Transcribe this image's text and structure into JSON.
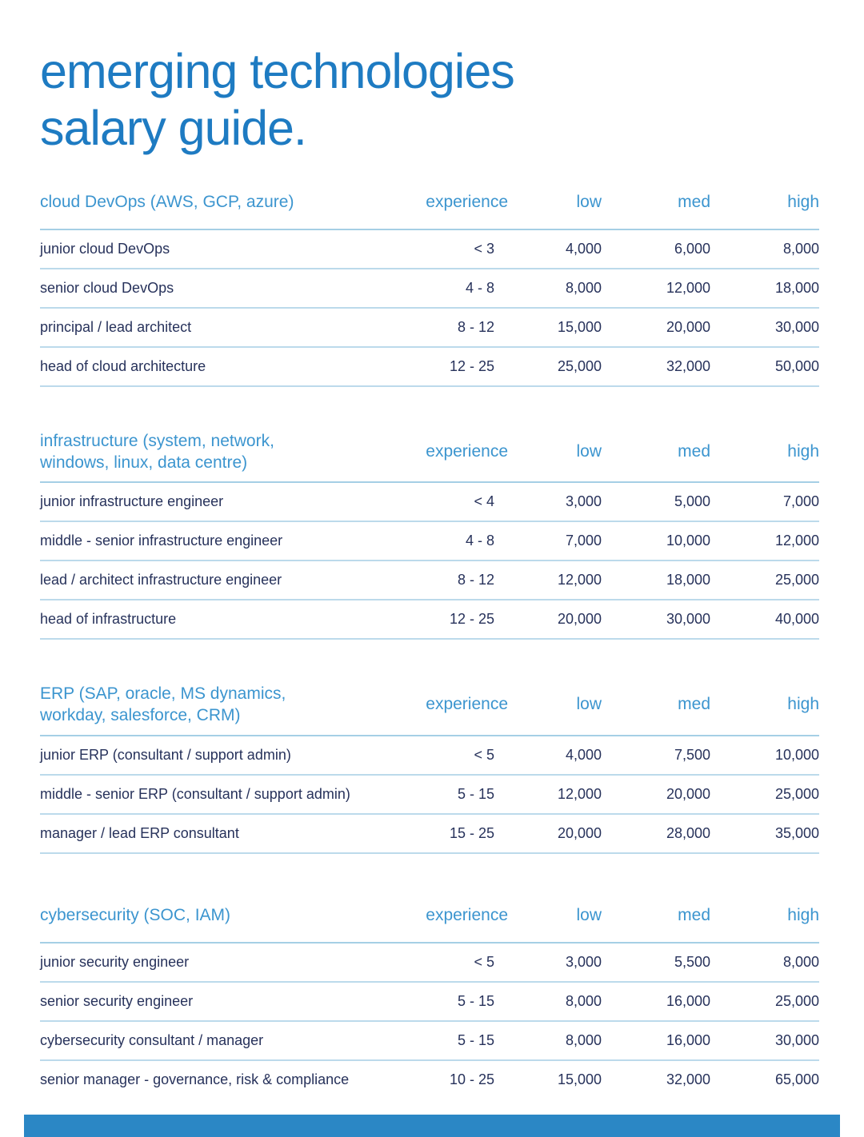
{
  "title": {
    "line1": "emerging technologies",
    "line2": "salary guide."
  },
  "columns": {
    "experience": "experience",
    "low": "low",
    "med": "med",
    "high": "high"
  },
  "colors": {
    "title_blue": "#1e7bc2",
    "section_header_blue": "#3c95cf",
    "row_text_navy": "#27325b",
    "divider_blue": "#bcdaeb",
    "footer_bar_blue": "#2b87c5"
  },
  "sections": [
    {
      "title": "cloud DevOps (AWS, GCP, azure)",
      "rows": [
        {
          "role": "junior cloud DevOps",
          "experience": "< 3",
          "low": "4,000",
          "med": "6,000",
          "high": "8,000"
        },
        {
          "role": "senior cloud DevOps",
          "experience": "4 - 8",
          "low": "8,000",
          "med": "12,000",
          "high": "18,000"
        },
        {
          "role": "principal / lead architect",
          "experience": "8 - 12",
          "low": "15,000",
          "med": "20,000",
          "high": "30,000"
        },
        {
          "role": "head of cloud architecture",
          "experience": "12 - 25",
          "low": "25,000",
          "med": "32,000",
          "high": "50,000"
        }
      ]
    },
    {
      "title": "infrastructure (system, network,\nwindows, linux, data centre)",
      "rows": [
        {
          "role": "junior infrastructure engineer",
          "experience": "< 4",
          "low": "3,000",
          "med": "5,000",
          "high": "7,000"
        },
        {
          "role": "middle - senior infrastructure engineer",
          "experience": "4 - 8",
          "low": "7,000",
          "med": "10,000",
          "high": "12,000"
        },
        {
          "role": "lead / architect infrastructure engineer",
          "experience": "8 - 12",
          "low": "12,000",
          "med": "18,000",
          "high": "25,000"
        },
        {
          "role": "head of infrastructure",
          "experience": "12 - 25",
          "low": "20,000",
          "med": "30,000",
          "high": "40,000"
        }
      ]
    },
    {
      "title": "ERP (SAP, oracle, MS dynamics,\nworkday, salesforce, CRM)",
      "rows": [
        {
          "role": "junior ERP (consultant / support admin)",
          "experience": "< 5",
          "low": "4,000",
          "med": "7,500",
          "high": "10,000"
        },
        {
          "role": "middle - senior ERP (consultant / support admin)",
          "experience": "5 - 15",
          "low": "12,000",
          "med": "20,000",
          "high": "25,000"
        },
        {
          "role": "manager / lead ERP consultant",
          "experience": "15 - 25",
          "low": "20,000",
          "med": "28,000",
          "high": "35,000"
        }
      ]
    },
    {
      "title": "cybersecurity (SOC, IAM)",
      "rows": [
        {
          "role": "junior security engineer",
          "experience": "< 5",
          "low": "3,000",
          "med": "5,500",
          "high": "8,000"
        },
        {
          "role": "senior security engineer",
          "experience": "5 - 15",
          "low": "8,000",
          "med": "16,000",
          "high": "25,000"
        },
        {
          "role": "cybersecurity consultant / manager",
          "experience": "5 - 15",
          "low": "8,000",
          "med": "16,000",
          "high": "30,000"
        },
        {
          "role": "senior manager - governance, risk & compliance",
          "experience": "10 - 25",
          "low": "15,000",
          "med": "32,000",
          "high": "65,000"
        }
      ]
    }
  ]
}
